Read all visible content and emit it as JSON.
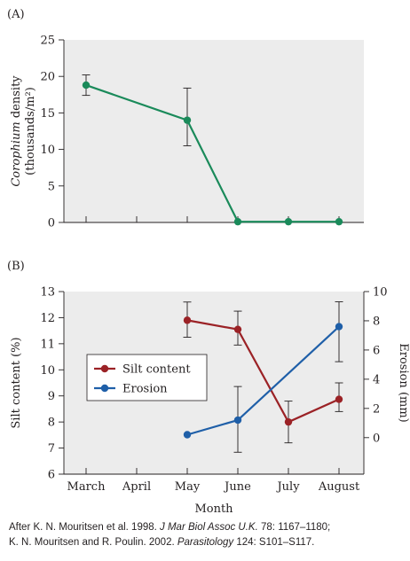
{
  "chart_data": [
    {
      "panel_label": "(A)",
      "type": "line",
      "categories": [
        "March",
        "April",
        "May",
        "June",
        "July",
        "August"
      ],
      "ylabel_italic": "Corophium",
      "ylabel_rest": " density",
      "ylabel_line2": "(thousands/m²)",
      "ylim": [
        0,
        25
      ],
      "yticks": [
        0,
        5,
        10,
        15,
        20,
        25
      ],
      "grid": false,
      "series": [
        {
          "color": "#1a8a5a",
          "points": [
            {
              "x": "March",
              "y": 18.8,
              "err_low": 17.4,
              "err_high": 20.2
            },
            {
              "x": "May",
              "y": 14.0,
              "err_low": 10.5,
              "err_high": 18.4
            },
            {
              "x": "June",
              "y": 0.1
            },
            {
              "x": "July",
              "y": 0.1
            },
            {
              "x": "August",
              "y": 0.1
            }
          ]
        }
      ]
    },
    {
      "panel_label": "(B)",
      "type": "line",
      "categories": [
        "March",
        "April",
        "May",
        "June",
        "July",
        "August"
      ],
      "xlabel": "Month",
      "ylabel_left": "Silt content (%)",
      "ylabel_right": "Erosion (mm)",
      "ylim_left": [
        6,
        13
      ],
      "yticks_left": [
        6,
        7,
        8,
        9,
        10,
        11,
        12,
        13
      ],
      "ylim_right": [
        -2.5,
        10
      ],
      "yticks_right": [
        0,
        2,
        4,
        6,
        8,
        10
      ],
      "legend_position": "center-left",
      "grid": false,
      "series": [
        {
          "name": "Silt content",
          "axis": "left",
          "color": "#9b2226",
          "points": [
            {
              "x": "May",
              "y": 11.9,
              "err_low": 11.25,
              "err_high": 12.6
            },
            {
              "x": "June",
              "y": 11.55,
              "err_low": 10.95,
              "err_high": 12.25
            },
            {
              "x": "July",
              "y": 8.0,
              "err_low": 7.2,
              "err_high": 8.8
            },
            {
              "x": "August",
              "y": 8.87,
              "err_low": 8.4,
              "err_high": 9.5
            }
          ]
        },
        {
          "name": "Erosion",
          "axis": "right",
          "color": "#1f5fa8",
          "points": [
            {
              "x": "May",
              "y": 0.2
            },
            {
              "x": "June",
              "y": 1.2,
              "err_low": -1.0,
              "err_high": 3.5
            },
            {
              "x": "August",
              "y": 7.6,
              "err_low": 5.2,
              "err_high": 9.3
            }
          ]
        }
      ]
    }
  ],
  "source": {
    "line1_a": "After K. N. Mouritsen et al. 1998. ",
    "line1_b": "J Mar Biol Assoc U.K.",
    "line1_c": " 78: 1167–1180;",
    "line2_a": "K. N. Mouritsen and R. Poulin. 2002. ",
    "line2_b": "Parasitology",
    "line2_c": " 124: S101–S117."
  }
}
